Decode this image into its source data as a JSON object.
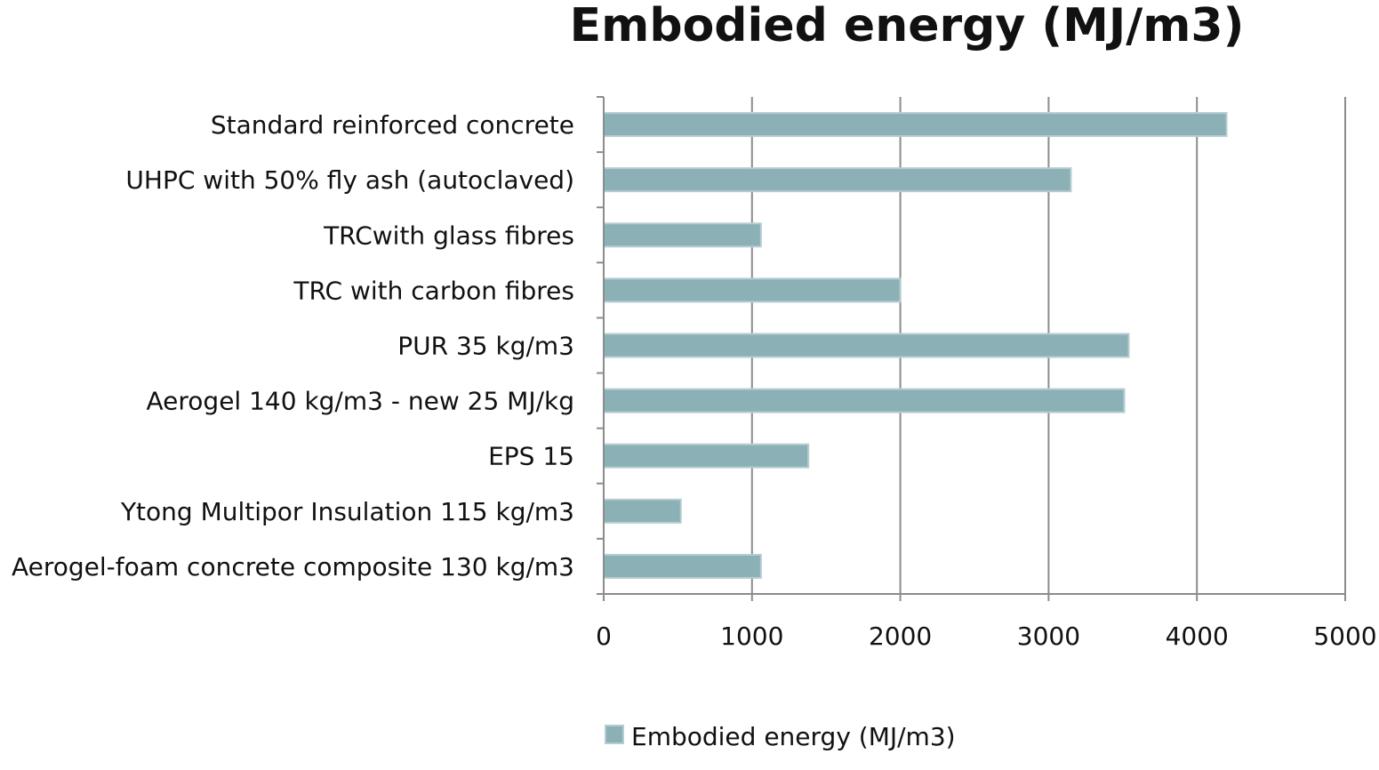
{
  "chart_data": {
    "type": "bar",
    "orientation": "horizontal",
    "title": "Embodied energy (MJ/m3)",
    "categories": [
      "Standard reinforced concrete",
      "UHPC with 50% fly ash (autoclaved)",
      "TRCwith glass fibres",
      "TRC with carbon fibres",
      "PUR 35 kg/m3",
      "Aerogel 140 kg/m3 - new 25 MJ/kg",
      "EPS 15",
      "Ytong Multipor Insulation 115 kg/m3",
      "Aerogel-foam concrete composite 130 kg/m3"
    ],
    "series": [
      {
        "name": "Embodied energy (MJ/m3)",
        "values": [
          4200,
          3150,
          1060,
          2000,
          3540,
          3510,
          1380,
          520,
          1060
        ]
      }
    ],
    "xlim": [
      0,
      5000
    ],
    "xticks": [
      "0",
      "1000",
      "2000",
      "3000",
      "4000",
      "5000"
    ],
    "grid": true,
    "legend_position": "bottom",
    "bar_color": "#8bb0b5",
    "bar_border_color": "#b5cdd1",
    "grid_color": "#8c8c8c"
  }
}
